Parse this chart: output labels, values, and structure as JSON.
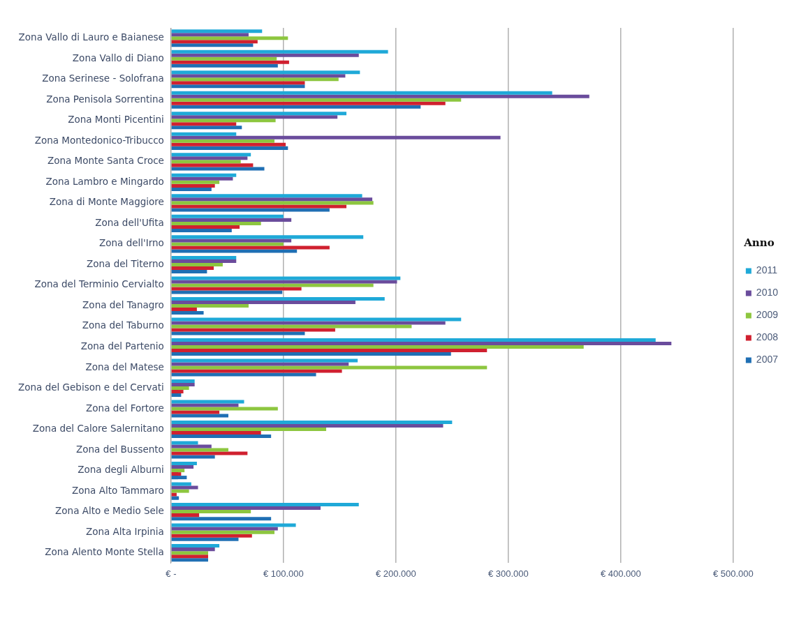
{
  "chart_data": {
    "type": "bar",
    "orientation": "horizontal",
    "legend_title": "Anno",
    "legend": "right",
    "grid": "x",
    "categories": [
      "Zona Vallo di Lauro e Baianese",
      "Zona Vallo di Diano",
      "Zona Serinese - Solofrana",
      "Zona Penisola Sorrentina",
      "Zona Monti Picentini",
      "Zona Montedonico-Tribucco",
      "Zona Monte Santa Croce",
      "Zona Lambro e Mingardo",
      "Zona di Monte Maggiore",
      "Zona dell'Ufita",
      "Zona dell'Irno",
      "Zona del Titerno",
      "Zona del Terminio Cervialto",
      "Zona del Tanagro",
      "Zona del Taburno",
      "Zona del Partenio",
      "Zona del Matese",
      "Zona del Gebison e del Cervati",
      "Zona del Fortore",
      "Zona del Calore Salernitano",
      "Zona del Bussento",
      "Zona degli Alburni",
      "Zona Alto Tammaro",
      "Zona Alto e Medio Sele",
      "Zona Alta Irpinia",
      "Zona Alento Monte Stella"
    ],
    "xlim": [
      0,
      500000
    ],
    "xticks": [
      {
        "value": 0,
        "label": "€ -"
      },
      {
        "value": 100000,
        "label": "€ 100.000"
      },
      {
        "value": 200000,
        "label": "€ 200.000"
      },
      {
        "value": 300000,
        "label": "€ 300.000"
      },
      {
        "value": 400000,
        "label": "€ 400.000"
      },
      {
        "value": 500000,
        "label": "€ 500.000"
      }
    ],
    "series": [
      {
        "name": "2011",
        "color": "#1fa9d8",
        "values": [
          81000,
          193000,
          168000,
          339000,
          156000,
          58000,
          71000,
          58000,
          170000,
          100000,
          171000,
          58000,
          204000,
          190000,
          258000,
          431000,
          166000,
          21000,
          65000,
          250000,
          24000,
          23000,
          18000,
          167000,
          111000,
          43000
        ]
      },
      {
        "name": "2010",
        "color": "#6a4c9c",
        "values": [
          69000,
          167000,
          155000,
          372000,
          148000,
          293000,
          68000,
          55000,
          179000,
          107000,
          107000,
          58000,
          201000,
          164000,
          244000,
          445000,
          158000,
          21000,
          60000,
          242000,
          36000,
          20000,
          24000,
          133000,
          95000,
          39000
        ]
      },
      {
        "name": "2009",
        "color": "#8dc63f",
        "values": [
          104000,
          94000,
          149000,
          258000,
          93000,
          92000,
          62000,
          43000,
          180000,
          80000,
          100000,
          46000,
          180000,
          69000,
          214000,
          367000,
          281000,
          16000,
          95000,
          138000,
          51000,
          12000,
          16000,
          71000,
          92000,
          33000
        ]
      },
      {
        "name": "2008",
        "color": "#d0202f",
        "values": [
          77000,
          105000,
          119000,
          244000,
          58000,
          102000,
          73000,
          39000,
          156000,
          61000,
          141000,
          38000,
          116000,
          23000,
          146000,
          281000,
          152000,
          11000,
          43000,
          80000,
          68000,
          9000,
          5000,
          25000,
          72000,
          33000
        ]
      },
      {
        "name": "2007",
        "color": "#1f6fb4",
        "values": [
          73000,
          95000,
          119000,
          222000,
          63000,
          104000,
          83000,
          36000,
          141000,
          54000,
          112000,
          32000,
          99000,
          29000,
          119000,
          249000,
          129000,
          9000,
          51000,
          89000,
          39000,
          14000,
          7000,
          89000,
          60000,
          33000
        ]
      }
    ]
  }
}
